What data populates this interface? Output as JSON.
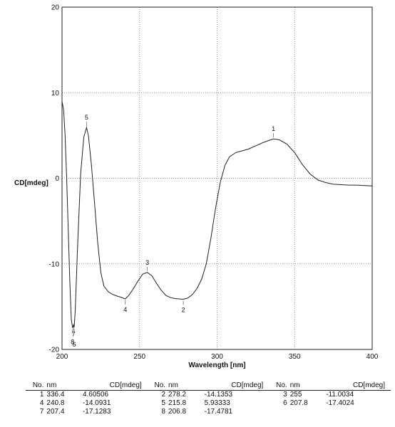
{
  "chart_data": {
    "type": "line",
    "xlabel": "Wavelength [nm]",
    "ylabel": "CD[mdeg]",
    "xlim": [
      200,
      400
    ],
    "ylim": [
      -20,
      20
    ],
    "x_ticks": [
      "200",
      "250",
      "300",
      "350",
      "400"
    ],
    "y_ticks": [
      "20",
      "10",
      "0",
      "-10",
      "-20"
    ],
    "grid": "dotted",
    "series": [
      {
        "x": [
          200,
          201,
          202,
          203,
          204,
          205,
          206,
          206.8,
          207.4,
          207.8,
          208.5,
          210,
          212,
          214,
          215.8,
          217,
          219,
          221,
          223,
          225,
          227,
          230,
          233,
          236,
          238,
          240.8,
          243,
          246,
          249,
          252,
          255,
          258,
          261,
          264,
          267,
          270,
          273,
          276,
          278.2,
          281,
          284,
          287,
          290,
          293,
          296,
          299,
          302,
          305,
          308,
          312,
          316,
          320,
          325,
          330,
          336.4,
          340,
          345,
          350,
          355,
          360,
          365,
          370,
          375,
          380,
          385,
          390,
          395,
          400
        ],
        "y": [
          9.0,
          8.0,
          5.0,
          0.0,
          -6.0,
          -12.0,
          -16.5,
          -17.4781,
          -17.1283,
          -17.4024,
          -15.5,
          -8.0,
          0.5,
          4.8,
          5.93333,
          5.0,
          1.5,
          -3.0,
          -7.5,
          -11.0,
          -12.6,
          -13.3,
          -13.6,
          -13.8,
          -13.9,
          -14.0931,
          -13.7,
          -12.9,
          -12.0,
          -11.2,
          -11.0034,
          -11.4,
          -12.3,
          -13.1,
          -13.7,
          -13.95,
          -14.05,
          -14.1,
          -14.1353,
          -14.0,
          -13.6,
          -12.9,
          -11.8,
          -10.0,
          -7.0,
          -3.5,
          -0.5,
          1.5,
          2.5,
          3.0,
          3.2,
          3.4,
          3.8,
          4.2,
          4.60506,
          4.5,
          4.0,
          3.0,
          1.6,
          0.5,
          -0.2,
          -0.5,
          -0.7,
          -0.75,
          -0.8,
          -0.8,
          -0.85,
          -0.9
        ]
      }
    ],
    "peak_labels": [
      {
        "label": "1",
        "x": 336.4,
        "y": 4.60506,
        "pos": "above"
      },
      {
        "label": "2",
        "x": 278.2,
        "y": -14.1353,
        "pos": "below"
      },
      {
        "label": "3",
        "x": 255,
        "y": -11.0034,
        "pos": "above"
      },
      {
        "label": "4",
        "x": 240.8,
        "y": -14.0931,
        "pos": "below"
      },
      {
        "label": "5",
        "x": 215.8,
        "y": 5.93333,
        "pos": "above"
      },
      {
        "label": "6",
        "x": 207.8,
        "y": -17.4024,
        "pos": "below"
      },
      {
        "label": "7",
        "x": 207.4,
        "y": -17.1283,
        "pos": "below"
      },
      {
        "label": "8",
        "x": 206.8,
        "y": -17.4781,
        "pos": "below"
      }
    ]
  },
  "peak_table": {
    "headers": [
      "No.",
      "nm",
      "CD[mdeg]"
    ],
    "rows": [
      [
        {
          "no": "1",
          "nm": "336.4",
          "cd": "4.60506"
        },
        {
          "no": "2",
          "nm": "278.2",
          "cd": "-14.1353"
        },
        {
          "no": "3",
          "nm": "255",
          "cd": "-11.0034"
        }
      ],
      [
        {
          "no": "4",
          "nm": "240.8",
          "cd": "-14.0931"
        },
        {
          "no": "5",
          "nm": "215.8",
          "cd": "5.93333"
        },
        {
          "no": "6",
          "nm": "207.8",
          "cd": "-17.4024"
        }
      ],
      [
        {
          "no": "7",
          "nm": "207.4",
          "cd": "-17.1283"
        },
        {
          "no": "8",
          "nm": "206.8",
          "cd": "-17.4781"
        },
        {
          "no": "",
          "nm": "",
          "cd": ""
        }
      ]
    ]
  }
}
